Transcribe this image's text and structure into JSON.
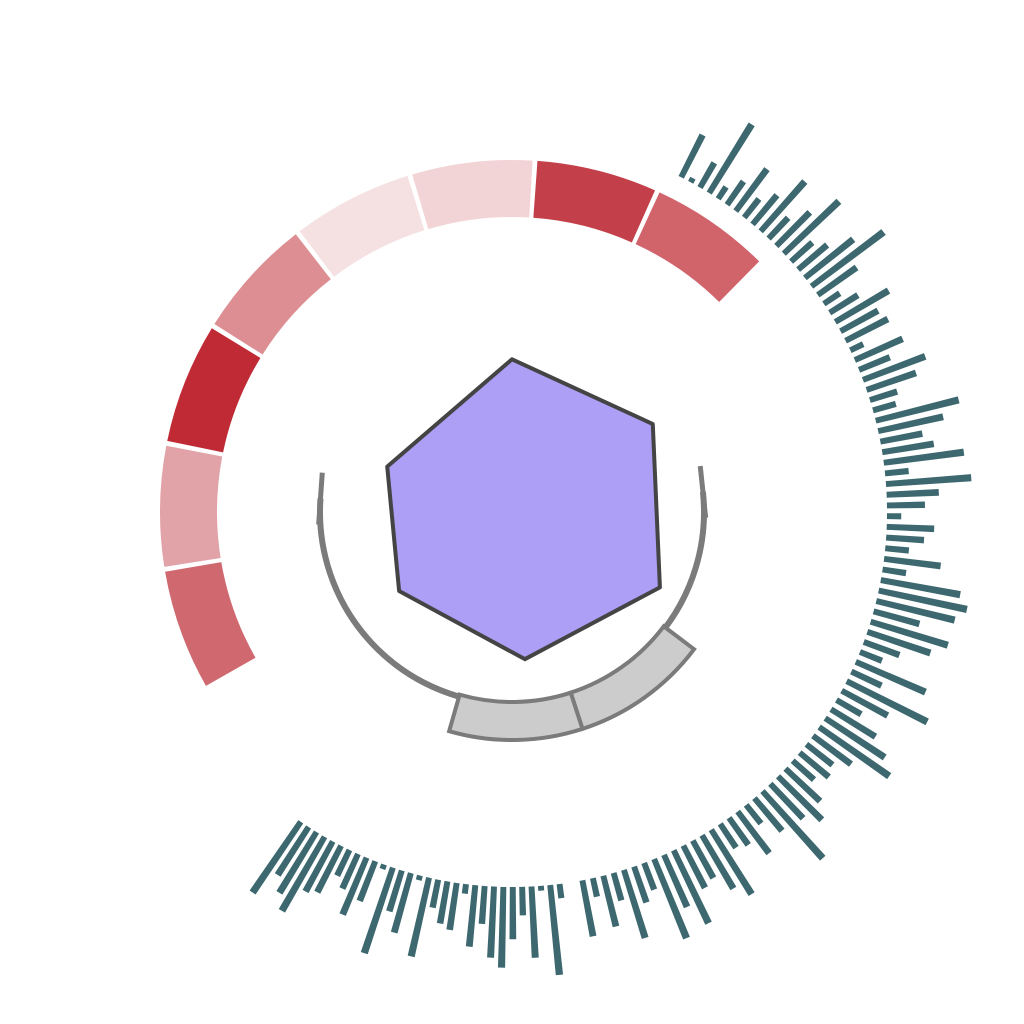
{
  "chart_data": [
    {
      "type": "radial-heat-segments",
      "start_angle_deg": 240,
      "end_angle_deg": 45,
      "colors": [
        "#d06870",
        "#e1a3a7",
        "#c02a35",
        "#dd8e92",
        "#f5e0e2",
        "#f3d4d6",
        "#c33f49",
        "#d1636b"
      ]
    },
    {
      "type": "polygon",
      "fill": "#ac9ff5",
      "stroke": "#444444",
      "vertices_deg_r": [
        [
          0,
          0.92
        ],
        [
          58,
          1.0
        ],
        [
          117,
          1.0
        ],
        [
          175,
          0.89
        ],
        [
          235,
          0.83
        ],
        [
          290,
          0.8
        ]
      ]
    },
    {
      "type": "radial-bar",
      "color": "#3d6870",
      "groups": [
        {
          "start_angle_deg": 26,
          "end_angle_deg": 170,
          "values": [
            0.5,
            0.05,
            0.3,
            0.85,
            0.15,
            0.3,
            0.55,
            0.25,
            0.4,
            0.7,
            0.3,
            0.5,
            0.8,
            0.3,
            0.4,
            0.65,
            0.95,
            0.5,
            0.2,
            0.35,
            0.65,
            0.45,
            0.5,
            0.15,
            0.55,
            0.35,
            0.7,
            0.55,
            0.3,
            0.25,
            0.9,
            0.7,
            0.45,
            0.55,
            0.85,
            0.25,
            0.9,
            0.55,
            0.4,
            0.15,
            0.5,
            0.4,
            0.25,
            0.6,
            0.25,
            0.85,
            0.95,
            0.85,
            0.5,
            0.85,
            0.7,
            0.4,
            0.25,
            0.8,
            0.35,
            0.95,
            0.55,
            0.3,
            0.55,
            0.75,
            0.9,
            0.5,
            0.35,
            0.4,
            0.3,
            0.5,
            0.65,
            0.5,
            0.95,
            0.45,
            0.25,
            0.55,
            0.35,
            0.3,
            0.8,
            0.65,
            0.45,
            0.5,
            0.85,
            0.6,
            0.9,
            0.3,
            0.4,
            0.75,
            0.3,
            0.55,
            0.2,
            0.6
          ]
        },
        {
          "start_angle_deg": 172,
          "end_angle_deg": 215,
          "values": [
            0.15,
            0.95,
            0.05,
            0.75,
            0.3,
            0.55,
            0.85,
            0.75,
            0.4,
            0.65,
            0.1,
            0.5,
            0.45,
            0.3,
            0.85,
            0.05,
            0.65,
            0.45,
            0.95,
            0.05,
            0.45,
            0.65,
            0.4,
            0.3,
            0.55,
            0.6,
            0.9,
            0.75,
            0.6,
            0.9
          ]
        }
      ]
    },
    {
      "type": "bracket-arc",
      "stroke": "#7b7b7b",
      "start_angle_deg": 84,
      "end_angle_deg": 274,
      "boxes": [
        {
          "start_angle_deg": 127,
          "end_angle_deg": 162,
          "fill": "#cccccc"
        },
        {
          "start_angle_deg": 162,
          "end_angle_deg": 196,
          "fill": "#cccccc"
        }
      ]
    }
  ]
}
